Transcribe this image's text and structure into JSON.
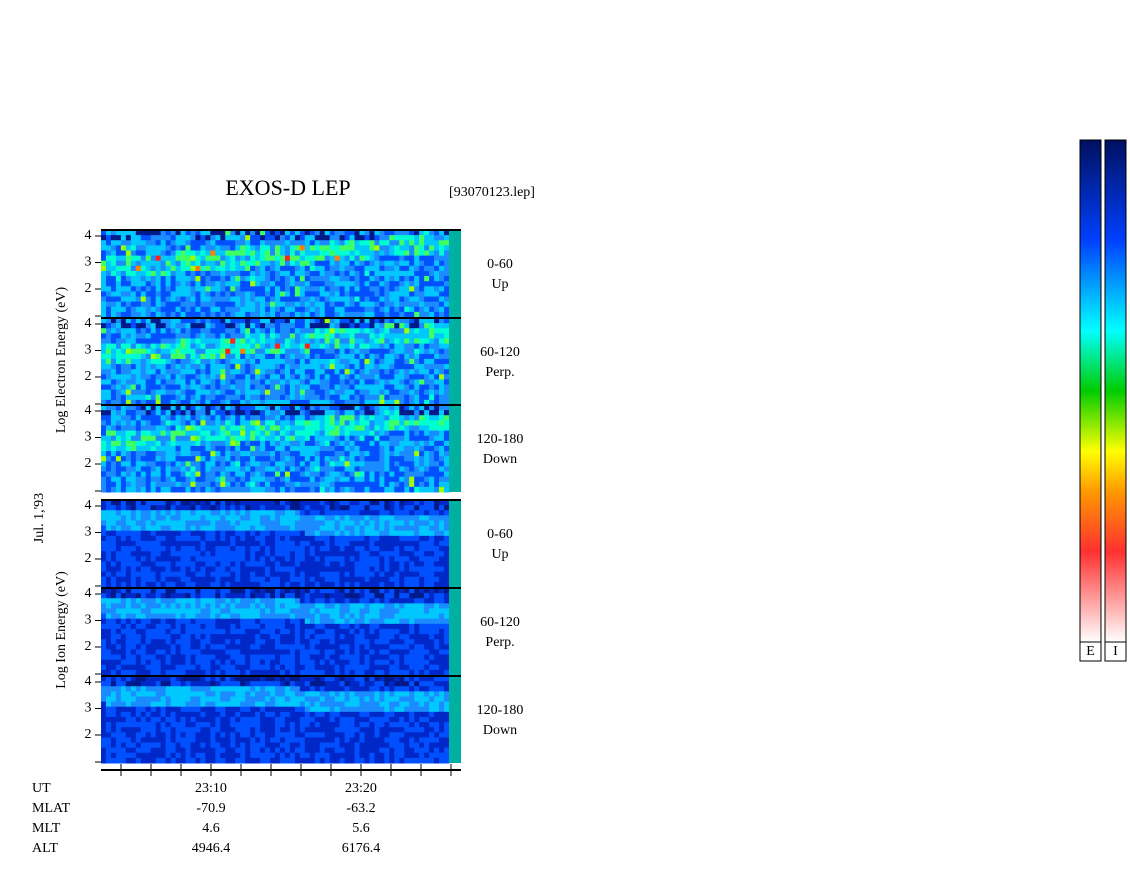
{
  "header": {
    "title": "EXOS-D LEP",
    "file": "[93070123.lep]",
    "date": "Jul. 1,'93"
  },
  "groups": [
    {
      "axis_label": "Log Electron Energy (eV)",
      "panels": [
        {
          "angles": "0-60",
          "direction": "Up",
          "yticks": [
            "4",
            "3",
            "2"
          ]
        },
        {
          "angles": "60-120",
          "direction": "Perp.",
          "yticks": [
            "4",
            "3",
            "2"
          ]
        },
        {
          "angles": "120-180",
          "direction": "Down",
          "yticks": [
            "4",
            "3",
            "2"
          ]
        }
      ]
    },
    {
      "axis_label": "Log Ion Energy (eV)",
      "panels": [
        {
          "angles": "0-60",
          "direction": "Up",
          "yticks": [
            "4",
            "3",
            "2"
          ]
        },
        {
          "angles": "60-120",
          "direction": "Perp.",
          "yticks": [
            "4",
            "3",
            "2"
          ]
        },
        {
          "angles": "120-180",
          "direction": "Down",
          "yticks": [
            "4",
            "3",
            "2"
          ]
        }
      ]
    }
  ],
  "time_axis": {
    "row_labels": [
      "UT",
      "MLAT",
      "MLT",
      "ALT"
    ],
    "columns": [
      [
        "23:10",
        "-70.9",
        "4.6",
        "4946.4"
      ],
      [
        "23:20",
        "-63.2",
        "5.6",
        "6176.4"
      ]
    ]
  },
  "colorbars": [
    "E",
    "I"
  ]
}
